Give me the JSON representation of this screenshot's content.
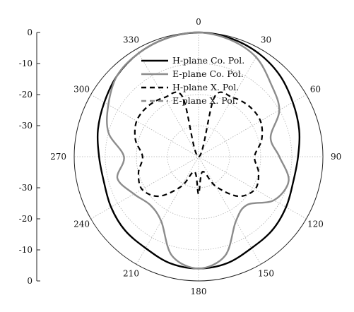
{
  "chart_data": {
    "type": "polar-line",
    "title": "",
    "radial_axis": {
      "ticks": [
        "0",
        "-10",
        "-20",
        "-30",
        "-30",
        "-20",
        "-10",
        "0"
      ],
      "range_db": [
        -40,
        0
      ]
    },
    "angular_ticks": [
      "0",
      "30",
      "60",
      "90",
      "120",
      "150",
      "180",
      "210",
      "240",
      "270",
      "300",
      "330"
    ],
    "grid": true,
    "legend_position": "top-center",
    "series": [
      {
        "name": "H-plane Co. Pol.",
        "color": "#000000",
        "style": "solid",
        "angles_deg": [
          0,
          15,
          30,
          45,
          60,
          75,
          90,
          105,
          120,
          135,
          150,
          165,
          180,
          195,
          210,
          225,
          240,
          255,
          270,
          285,
          300,
          315,
          330,
          345
        ],
        "gain_db": [
          0,
          -0.5,
          -1.5,
          -3,
          -5,
          -6.5,
          -8,
          -8.5,
          -7.5,
          -6.5,
          -6,
          -4.5,
          -4,
          -4.5,
          -6,
          -6.5,
          -7.5,
          -8.5,
          -8,
          -6.5,
          -5,
          -3,
          -1.5,
          -0.5
        ]
      },
      {
        "name": "E-plane Co. Pol.",
        "color": "#8c8c8c",
        "style": "solid",
        "angles_deg": [
          0,
          15,
          30,
          45,
          60,
          75,
          90,
          105,
          120,
          135,
          150,
          165,
          180,
          195,
          210,
          225,
          240,
          255,
          270,
          285,
          300,
          315,
          330,
          345
        ],
        "gain_db": [
          0,
          -1,
          -3,
          -7,
          -10,
          -16,
          -14,
          -10,
          -12,
          -18,
          -16,
          -7,
          -4,
          -7,
          -16,
          -18,
          -16,
          -13,
          -16,
          -10,
          -6.5,
          -3,
          -1.5,
          -0.5
        ]
      },
      {
        "name": "H-plane X. Pol.",
        "color": "#000000",
        "style": "dashed",
        "angles_deg": [
          0,
          15,
          30,
          45,
          60,
          75,
          90,
          105,
          120,
          135,
          150,
          165,
          180,
          195,
          210,
          225,
          240,
          255,
          270,
          285,
          300,
          315,
          330,
          345
        ],
        "gain_db": [
          -40,
          -20,
          -18,
          -17,
          -17,
          -19,
          -22,
          -20,
          -19,
          -22,
          -29,
          -35,
          -28,
          -35,
          -29,
          -22,
          -19,
          -20,
          -22,
          -19,
          -17,
          -17,
          -18,
          -20
        ]
      },
      {
        "name": "E-plane X. Pol.",
        "color": "#8c8c8c",
        "style": "dashed",
        "angles_deg": [],
        "gain_db": []
      }
    ]
  }
}
